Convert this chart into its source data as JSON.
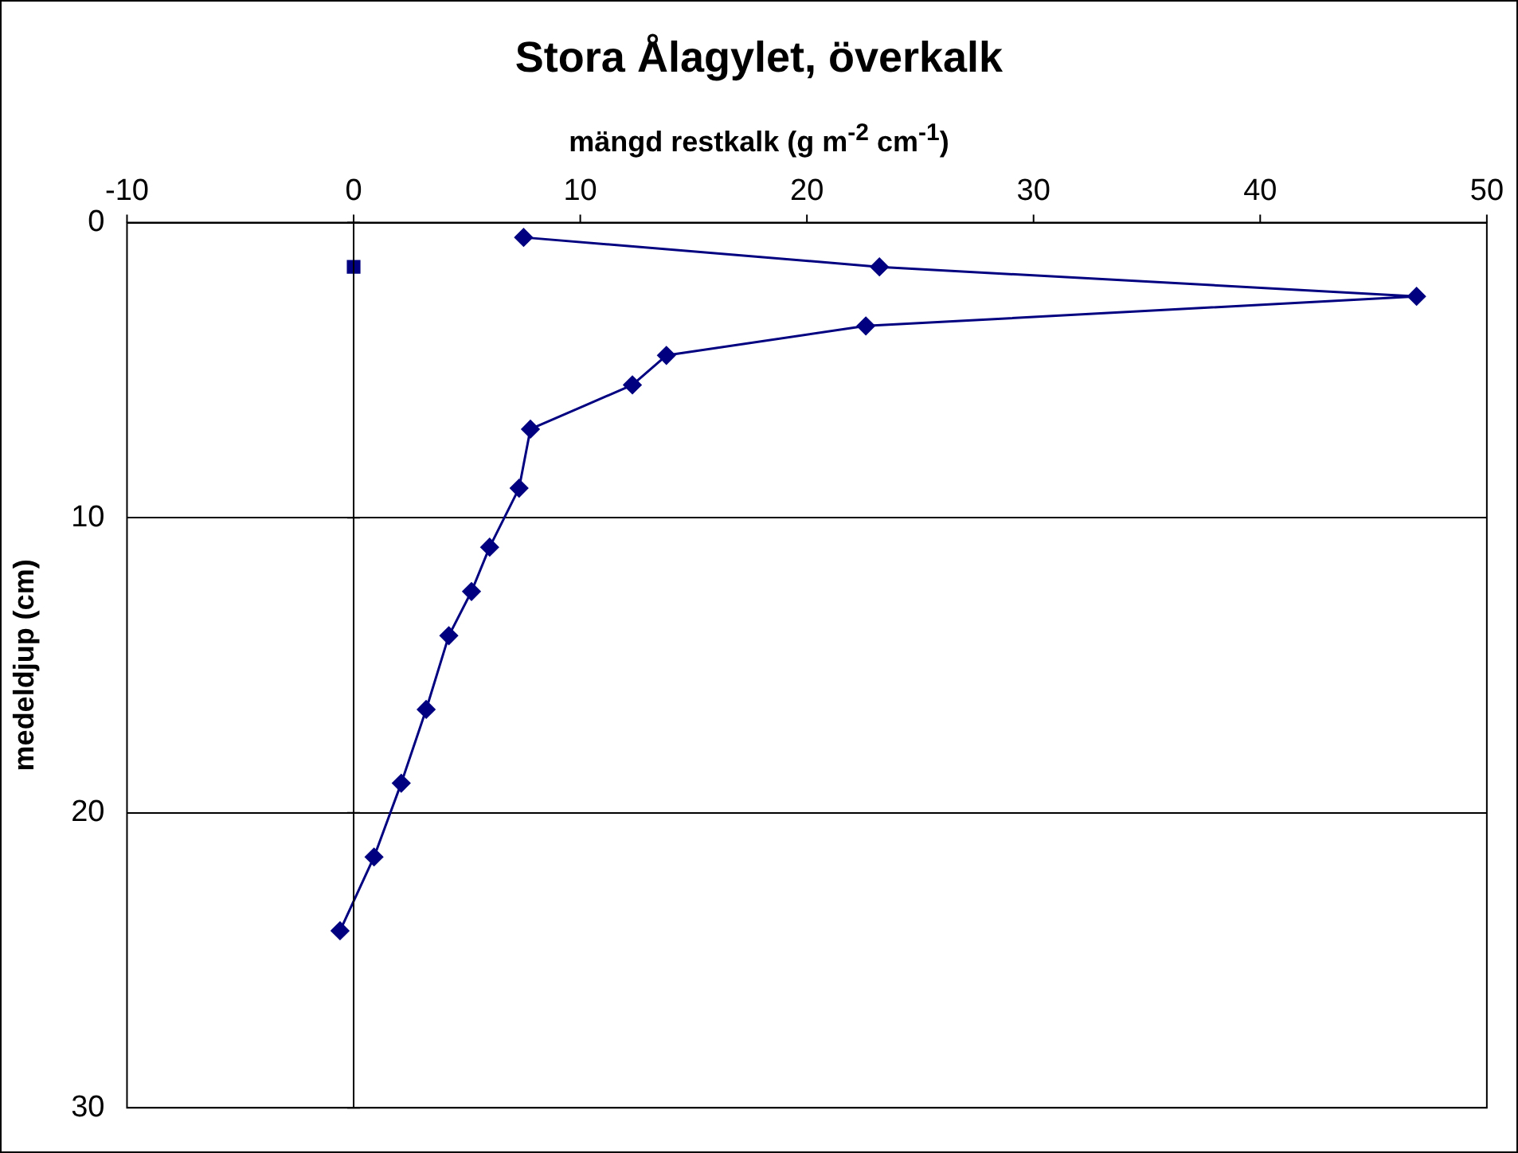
{
  "chart_data": {
    "type": "line",
    "title": "Stora Ålagylet, överkalk",
    "xlabel": "mängd restkalk (g m$^{-2}$ cm$^{-1}$)",
    "ylabel": "medeldjup (cm)",
    "series": [
      {
        "color": "#000080",
        "marker": "diamond",
        "x": [
          7.5,
          23.2,
          46.9,
          22.6,
          13.8,
          12.3,
          7.8,
          7.3,
          6.0,
          5.2,
          4.2,
          3.2,
          2.1,
          0.9,
          -0.6
        ],
        "values": [
          0.5,
          1.5,
          2.5,
          3.5,
          4.5,
          5.5,
          7,
          9,
          11,
          12.5,
          14,
          16.5,
          19,
          21.5,
          24
        ]
      },
      {
        "type": "scatter",
        "color": "#000080",
        "marker": "square",
        "x": [
          0
        ],
        "values": [
          1.5
        ]
      }
    ],
    "xlim": [
      -10,
      50
    ],
    "xticks": [
      -10,
      0,
      10,
      20,
      30,
      40,
      50
    ],
    "ylim": [
      30,
      0
    ],
    "yticks": [
      0,
      10,
      20,
      30
    ],
    "grid": "y",
    "legend": false,
    "line_style": "solid",
    "ref_lines": [
      {
        "axis": "x",
        "value": 0,
        "color": "#000000"
      }
    ]
  }
}
